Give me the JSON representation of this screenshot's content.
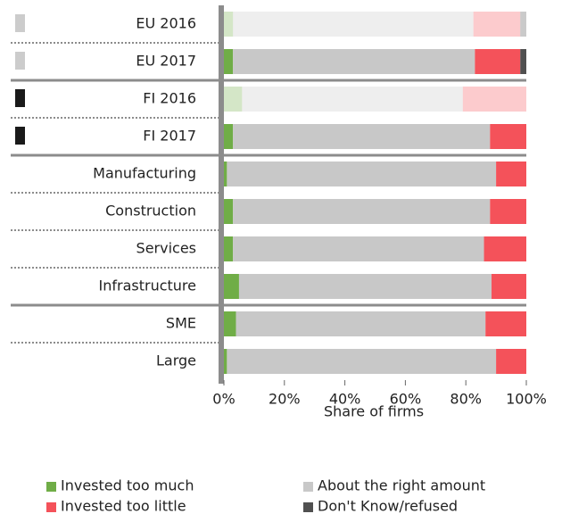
{
  "chart_data": {
    "type": "stacked_barh",
    "categories": [
      "EU 2016",
      "EU 2017",
      "FI 2016",
      "FI 2017",
      "Manufacturing",
      "Construction",
      "Services",
      "Infrastructure",
      "SME",
      "Large"
    ],
    "faded": [
      true,
      false,
      true,
      false,
      false,
      false,
      false,
      false,
      false,
      false
    ],
    "category_markers": [
      "#cccccc",
      "#cccccc",
      "#1a1a1a",
      "#1a1a1a",
      null,
      null,
      null,
      null,
      null,
      null
    ],
    "separators_after": [
      1,
      3,
      7
    ],
    "series": [
      {
        "name": "Invested too much",
        "color": "#70ad47",
        "values": [
          3,
          3,
          6,
          3,
          1,
          3,
          3,
          5,
          4,
          1
        ]
      },
      {
        "name": "About the right amount",
        "color": "#c8c8c8",
        "values": [
          79.5,
          80,
          73,
          85,
          89,
          85,
          83,
          83.5,
          82.5,
          89
        ]
      },
      {
        "name": "Invested too little",
        "color": "#f4525a",
        "values": [
          15.5,
          15,
          21,
          12,
          10,
          12,
          14,
          11.5,
          13.5,
          10
        ]
      },
      {
        "name": "Don't Know/refused",
        "color": "#505050",
        "values": [
          2,
          2,
          0,
          0,
          0,
          0,
          0,
          0,
          0,
          0
        ]
      }
    ],
    "xlim": [
      0,
      100
    ],
    "xticks": [
      {
        "value": 0,
        "label": "0%"
      },
      {
        "value": 20,
        "label": "20%"
      },
      {
        "value": 40,
        "label": "40%"
      },
      {
        "value": 60,
        "label": "60%"
      },
      {
        "value": 80,
        "label": "80%"
      },
      {
        "value": 100,
        "label": "100%"
      }
    ],
    "xlabel": "Share of firms"
  }
}
